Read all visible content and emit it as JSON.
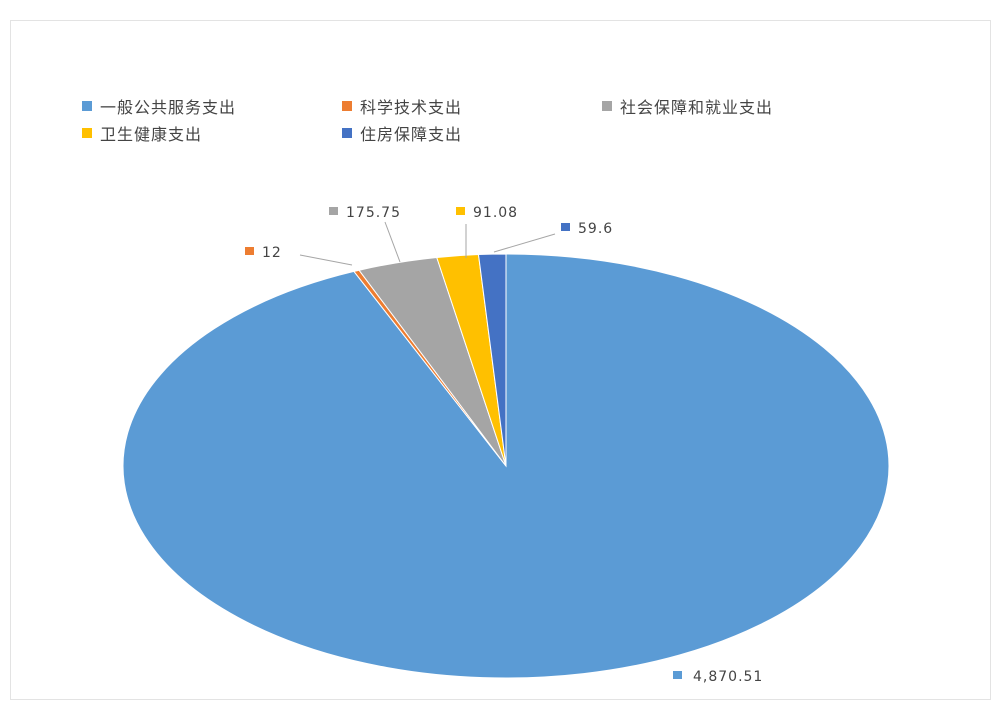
{
  "chart_data": {
    "type": "pie",
    "title": "",
    "legend_position": "top",
    "slices": [
      {
        "name": "一般公共服务支出",
        "value": 4870.51,
        "label": "4,870.51",
        "color": "#5B9BD5"
      },
      {
        "name": "科学技术支出",
        "value": 12,
        "label": "12",
        "color": "#ED7D31"
      },
      {
        "name": "社会保障和就业支出",
        "value": 175.75,
        "label": "175.75",
        "color": "#A5A5A5"
      },
      {
        "name": "卫生健康支出",
        "value": 91.08,
        "label": "91.08",
        "color": "#FFC000"
      },
      {
        "name": "住房保障支出",
        "value": 59.6,
        "label": "59.6",
        "color": "#4472C4"
      }
    ]
  }
}
